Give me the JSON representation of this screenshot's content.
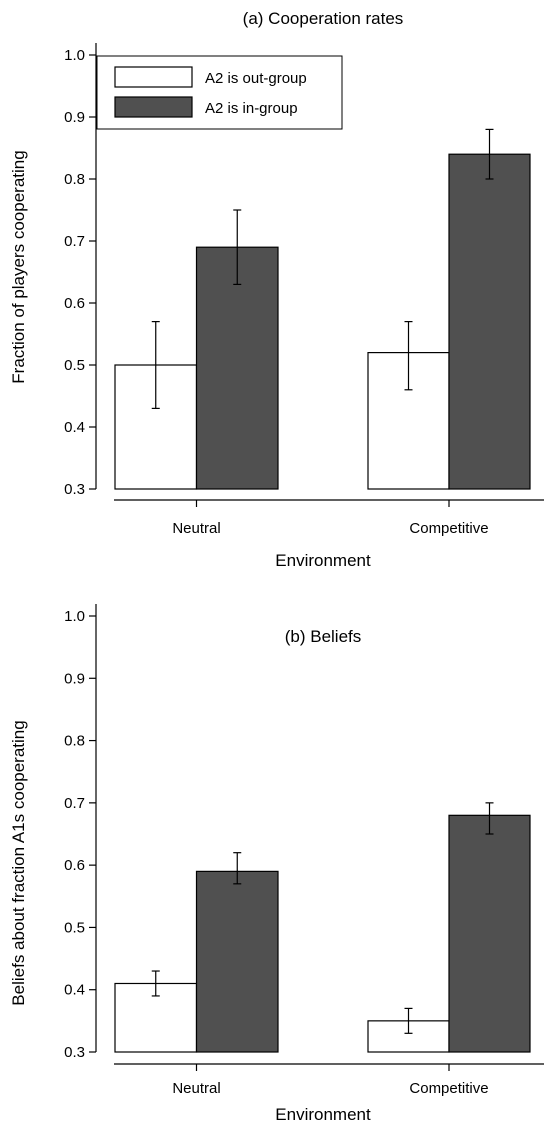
{
  "chart_data": [
    {
      "type": "bar",
      "title": "(a) Cooperation rates",
      "xlabel": "Environment",
      "ylabel": "Fraction of players cooperating",
      "ylim": [
        0.3,
        1.0
      ],
      "yticks": [
        "0.3",
        "0.4",
        "0.5",
        "0.6",
        "0.7",
        "0.8",
        "0.9",
        "1.0"
      ],
      "categories": [
        "Neutral",
        "Competitive"
      ],
      "legend": "top-left",
      "series": [
        {
          "name": "A2 is out-group",
          "color": "#ffffff",
          "values": [
            0.5,
            0.52
          ],
          "err_low": [
            0.43,
            0.46
          ],
          "err_high": [
            0.57,
            0.57
          ]
        },
        {
          "name": "A2 is in-group",
          "color": "#505050",
          "values": [
            0.69,
            0.84
          ],
          "err_low": [
            0.63,
            0.8
          ],
          "err_high": [
            0.75,
            0.88
          ]
        }
      ]
    },
    {
      "type": "bar",
      "title": "(b) Beliefs",
      "xlabel": "Environment",
      "ylabel": "Beliefs about fraction A1s cooperating",
      "ylim": [
        0.3,
        1.0
      ],
      "yticks": [
        "0.3",
        "0.4",
        "0.5",
        "0.6",
        "0.7",
        "0.8",
        "0.9",
        "1.0"
      ],
      "categories": [
        "Neutral",
        "Competitive"
      ],
      "series": [
        {
          "name": "A2 is out-group",
          "color": "#ffffff",
          "values": [
            0.41,
            0.35
          ],
          "err_low": [
            0.39,
            0.33
          ],
          "err_high": [
            0.43,
            0.37
          ]
        },
        {
          "name": "A2 is in-group",
          "color": "#505050",
          "values": [
            0.59,
            0.68
          ],
          "err_low": [
            0.57,
            0.65
          ],
          "err_high": [
            0.62,
            0.7
          ]
        }
      ]
    }
  ]
}
